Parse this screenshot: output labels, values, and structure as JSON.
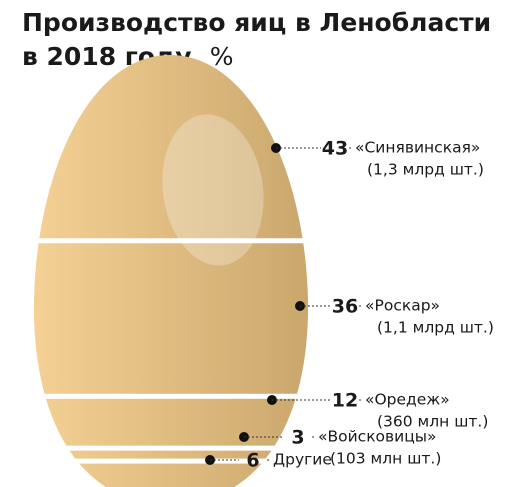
{
  "chart_data": {
    "type": "egg",
    "title": [
      "Производство яиц в Ленобласти",
      "в 2018 году,"
    ],
    "unit": "%",
    "categories": [
      "«Синявинская»",
      "«Роскар»",
      "«Оредеж»",
      "«Войсковицы»",
      "Другие"
    ],
    "values": [
      43,
      36,
      12,
      3,
      6
    ],
    "notes": [
      "(1,3 млрд шт.)",
      "(1,1 млрд шт.)",
      "(360 млн шт.)",
      "(103 млн шт.)",
      null
    ],
    "colors": [
      "#f5d196",
      "#c9a66b"
    ]
  }
}
